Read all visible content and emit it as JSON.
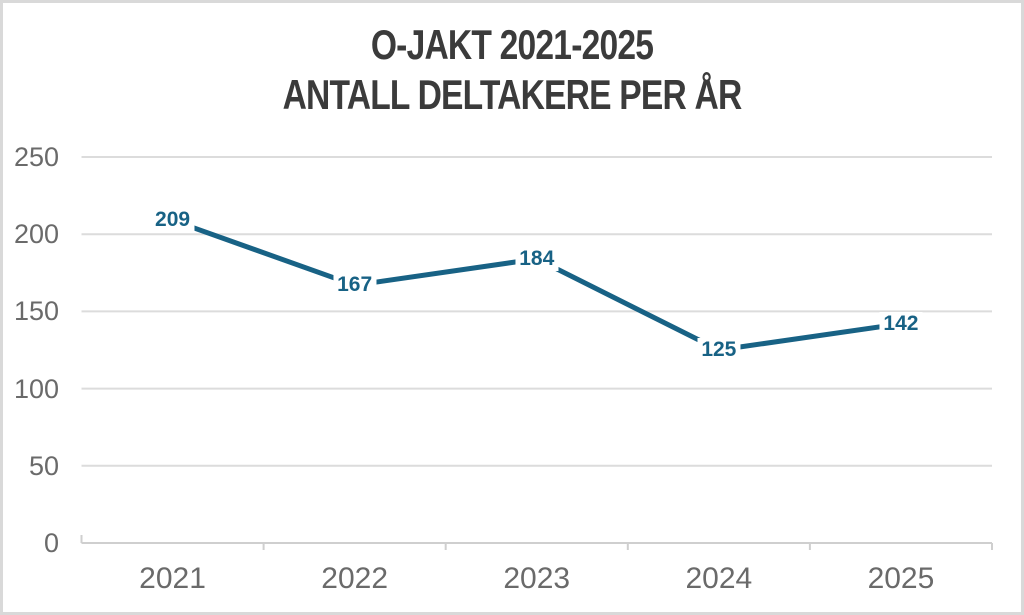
{
  "chart": {
    "title_lines": [
      "O-JAKT 2021-2025",
      "ANTALL DELTAKERE PER ÅR"
    ]
  },
  "chart_data": {
    "type": "line",
    "title": "O-JAKT 2021-2025\nANTALL DELTAKERE PER ÅR",
    "categories": [
      "2021",
      "2022",
      "2023",
      "2024",
      "2025"
    ],
    "values": [
      209,
      167,
      184,
      125,
      142
    ],
    "xlabel": "",
    "ylabel": "",
    "y_ticks": [
      0,
      50,
      100,
      150,
      200,
      250
    ],
    "ylim": [
      0,
      250
    ],
    "grid": true,
    "legend": "none",
    "colors": {
      "line": "#186285",
      "data_label": "#186285",
      "axis_text": "#6a6a6a",
      "gridline": "#dcdcdc",
      "axis_line": "#cfcfcf",
      "title": "#3b3b3b",
      "background": "#ffffff",
      "border": "#d9d9d9"
    }
  }
}
